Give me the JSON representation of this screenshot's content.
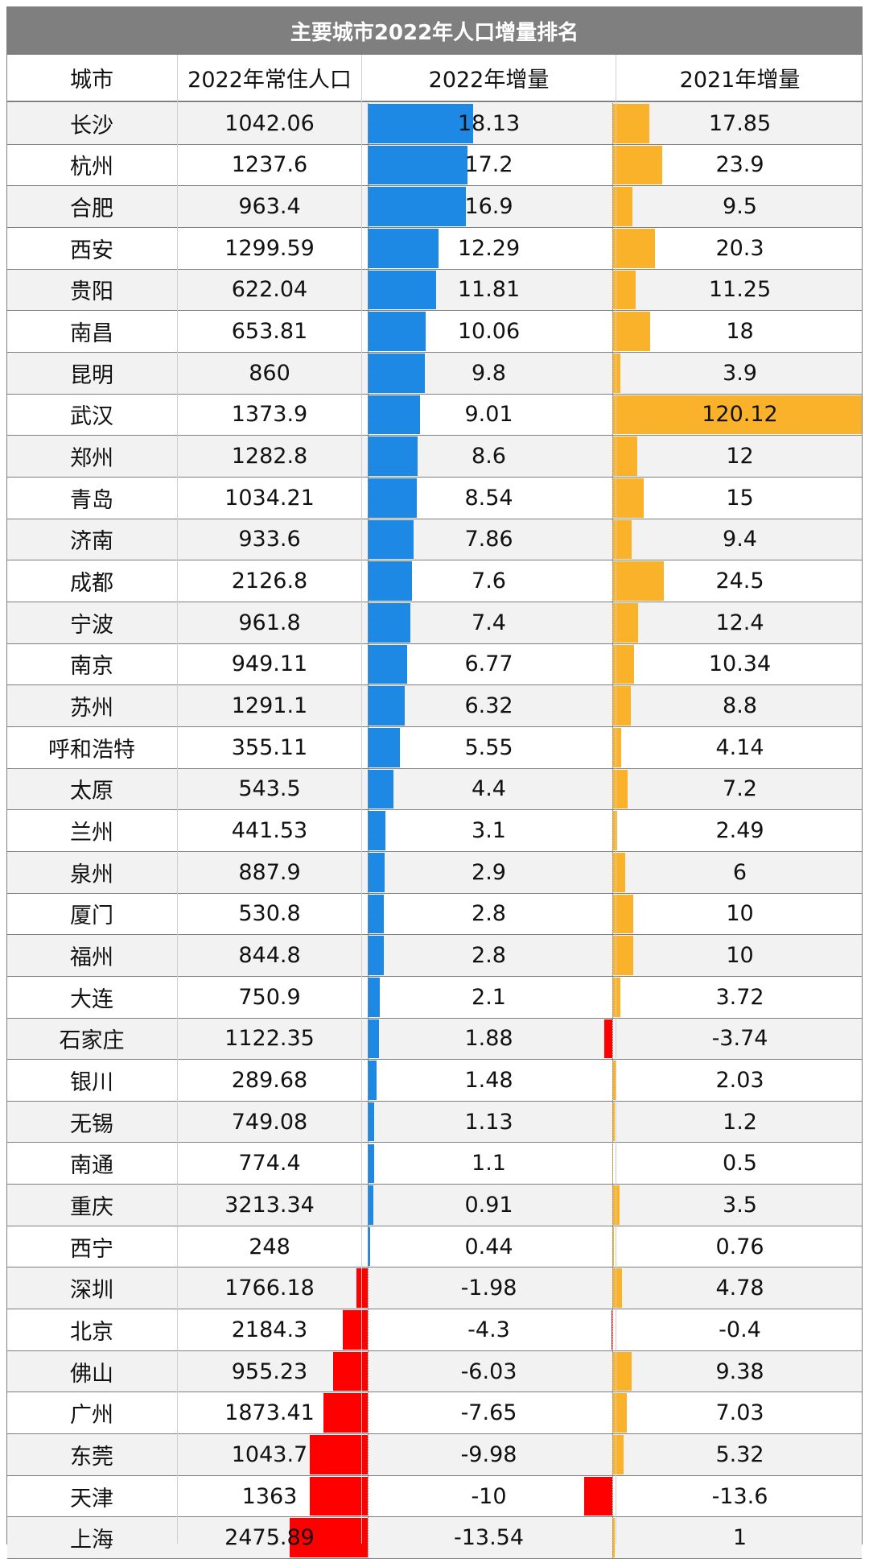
{
  "title": "主要城市2022年人口增量排名",
  "headers": {
    "city": "城市",
    "pop2022": "2022年常住人口",
    "growth2022": "2022年增量",
    "growth2021": "2021年增量"
  },
  "colors": {
    "title_bg": "#7f7f7f",
    "positive_2022": "#1e88e5",
    "positive_2021": "#fbb22b",
    "negative": "#ff0000",
    "row_shade": "#f2f2f2"
  },
  "chart_data": {
    "type": "table",
    "title": "主要城市2022年人口增量排名",
    "columns": [
      "城市",
      "2022年常住人口",
      "2022年增量",
      "2021年增量"
    ],
    "rows": [
      [
        "长沙",
        "1042.06",
        "18.13",
        "17.85"
      ],
      [
        "杭州",
        "1237.6",
        "17.2",
        "23.9"
      ],
      [
        "合肥",
        "963.4",
        "16.9",
        "9.5"
      ],
      [
        "西安",
        "1299.59",
        "12.29",
        "20.3"
      ],
      [
        "贵阳",
        "622.04",
        "11.81",
        "11.25"
      ],
      [
        "南昌",
        "653.81",
        "10.06",
        "18"
      ],
      [
        "昆明",
        "860",
        "9.8",
        "3.9"
      ],
      [
        "武汉",
        "1373.9",
        "9.01",
        "120.12"
      ],
      [
        "郑州",
        "1282.8",
        "8.6",
        "12"
      ],
      [
        "青岛",
        "1034.21",
        "8.54",
        "15"
      ],
      [
        "济南",
        "933.6",
        "7.86",
        "9.4"
      ],
      [
        "成都",
        "2126.8",
        "7.6",
        "24.5"
      ],
      [
        "宁波",
        "961.8",
        "7.4",
        "12.4"
      ],
      [
        "南京",
        "949.11",
        "6.77",
        "10.34"
      ],
      [
        "苏州",
        "1291.1",
        "6.32",
        "8.8"
      ],
      [
        "呼和浩特",
        "355.11",
        "5.55",
        "4.14"
      ],
      [
        "太原",
        "543.5",
        "4.4",
        "7.2"
      ],
      [
        "兰州",
        "441.53",
        "3.1",
        "2.49"
      ],
      [
        "泉州",
        "887.9",
        "2.9",
        "6"
      ],
      [
        "厦门",
        "530.8",
        "2.8",
        "10"
      ],
      [
        "福州",
        "844.8",
        "2.8",
        "10"
      ],
      [
        "大连",
        "750.9",
        "2.1",
        "3.72"
      ],
      [
        "石家庄",
        "1122.35",
        "1.88",
        "-3.74"
      ],
      [
        "银川",
        "289.68",
        "1.48",
        "2.03"
      ],
      [
        "无锡",
        "749.08",
        "1.13",
        "1.2"
      ],
      [
        "南通",
        "774.4",
        "1.1",
        "0.5"
      ],
      [
        "重庆",
        "3213.34",
        "0.91",
        "3.5"
      ],
      [
        "西宁",
        "248",
        "0.44",
        "0.76"
      ],
      [
        "深圳",
        "1766.18",
        "-1.98",
        "4.78"
      ],
      [
        "北京",
        "2184.3",
        "-4.3",
        "-0.4"
      ],
      [
        "佛山",
        "955.23",
        "-6.03",
        "9.38"
      ],
      [
        "广州",
        "1873.41",
        "-7.65",
        "7.03"
      ],
      [
        "东莞",
        "1043.7",
        "-9.98",
        "5.32"
      ],
      [
        "天津",
        "1363",
        "-10",
        "-13.6"
      ],
      [
        "上海",
        "2475.89",
        "-13.54",
        "1"
      ]
    ]
  }
}
